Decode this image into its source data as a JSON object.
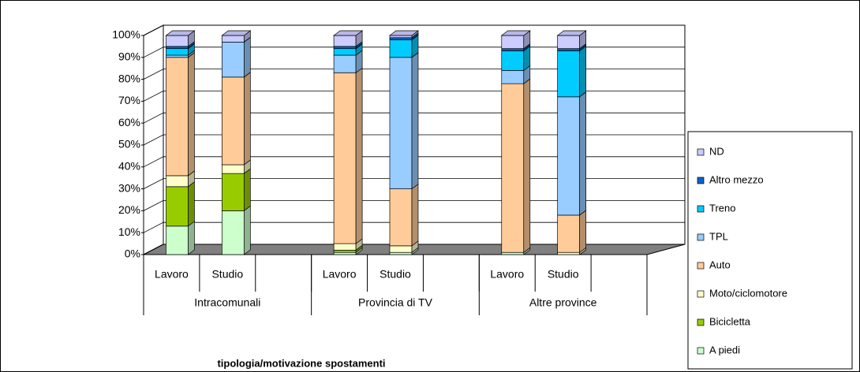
{
  "chart_data": {
    "type": "bar3d_stacked",
    "x_label": "tipologia/motivazione spostamenti",
    "groups": [
      "Intracomunali",
      "Provincia di TV",
      "Altre province"
    ],
    "categories": [
      "Lavoro",
      "Studio",
      "Lavoro",
      "Studio",
      "Lavoro",
      "Studio"
    ],
    "series": [
      {
        "name": "A piedi",
        "color": "#ccffcc",
        "values": [
          13,
          20,
          1,
          1,
          1,
          0
        ]
      },
      {
        "name": "Bicicletta",
        "color": "#99cc00",
        "values": [
          18,
          17,
          1,
          0,
          0,
          0
        ]
      },
      {
        "name": "Moto/ciclomotore",
        "color": "#ffffcc",
        "values": [
          5,
          4,
          3,
          3,
          0,
          1
        ]
      },
      {
        "name": "Auto",
        "color": "#ffcc99",
        "values": [
          54,
          40,
          78,
          26,
          77,
          17
        ]
      },
      {
        "name": "TPL",
        "color": "#99ccff",
        "values": [
          1,
          16,
          8,
          60,
          6,
          54
        ]
      },
      {
        "name": "Treno",
        "color": "#00ccff",
        "values": [
          3,
          0,
          3,
          8,
          9,
          21
        ]
      },
      {
        "name": "Altro mezzo",
        "color": "#0066cc",
        "values": [
          1,
          0,
          1,
          1,
          1,
          1
        ]
      },
      {
        "name": "ND",
        "color": "#ccccff",
        "values": [
          5,
          3,
          5,
          1,
          6,
          6
        ]
      }
    ],
    "ylim": [
      0,
      100
    ],
    "yticks": [
      {
        "value": 0,
        "label": "0%"
      },
      {
        "value": 10,
        "label": "10%"
      },
      {
        "value": 20,
        "label": "20%"
      },
      {
        "value": 30,
        "label": "30%"
      },
      {
        "value": 40,
        "label": "40%"
      },
      {
        "value": 50,
        "label": "50%"
      },
      {
        "value": 60,
        "label": "60%"
      },
      {
        "value": 70,
        "label": "70%"
      },
      {
        "value": 80,
        "label": "80%"
      },
      {
        "value": 90,
        "label": "90%"
      },
      {
        "value": 100,
        "label": "100%"
      }
    ],
    "grid": true,
    "legend": "right"
  }
}
